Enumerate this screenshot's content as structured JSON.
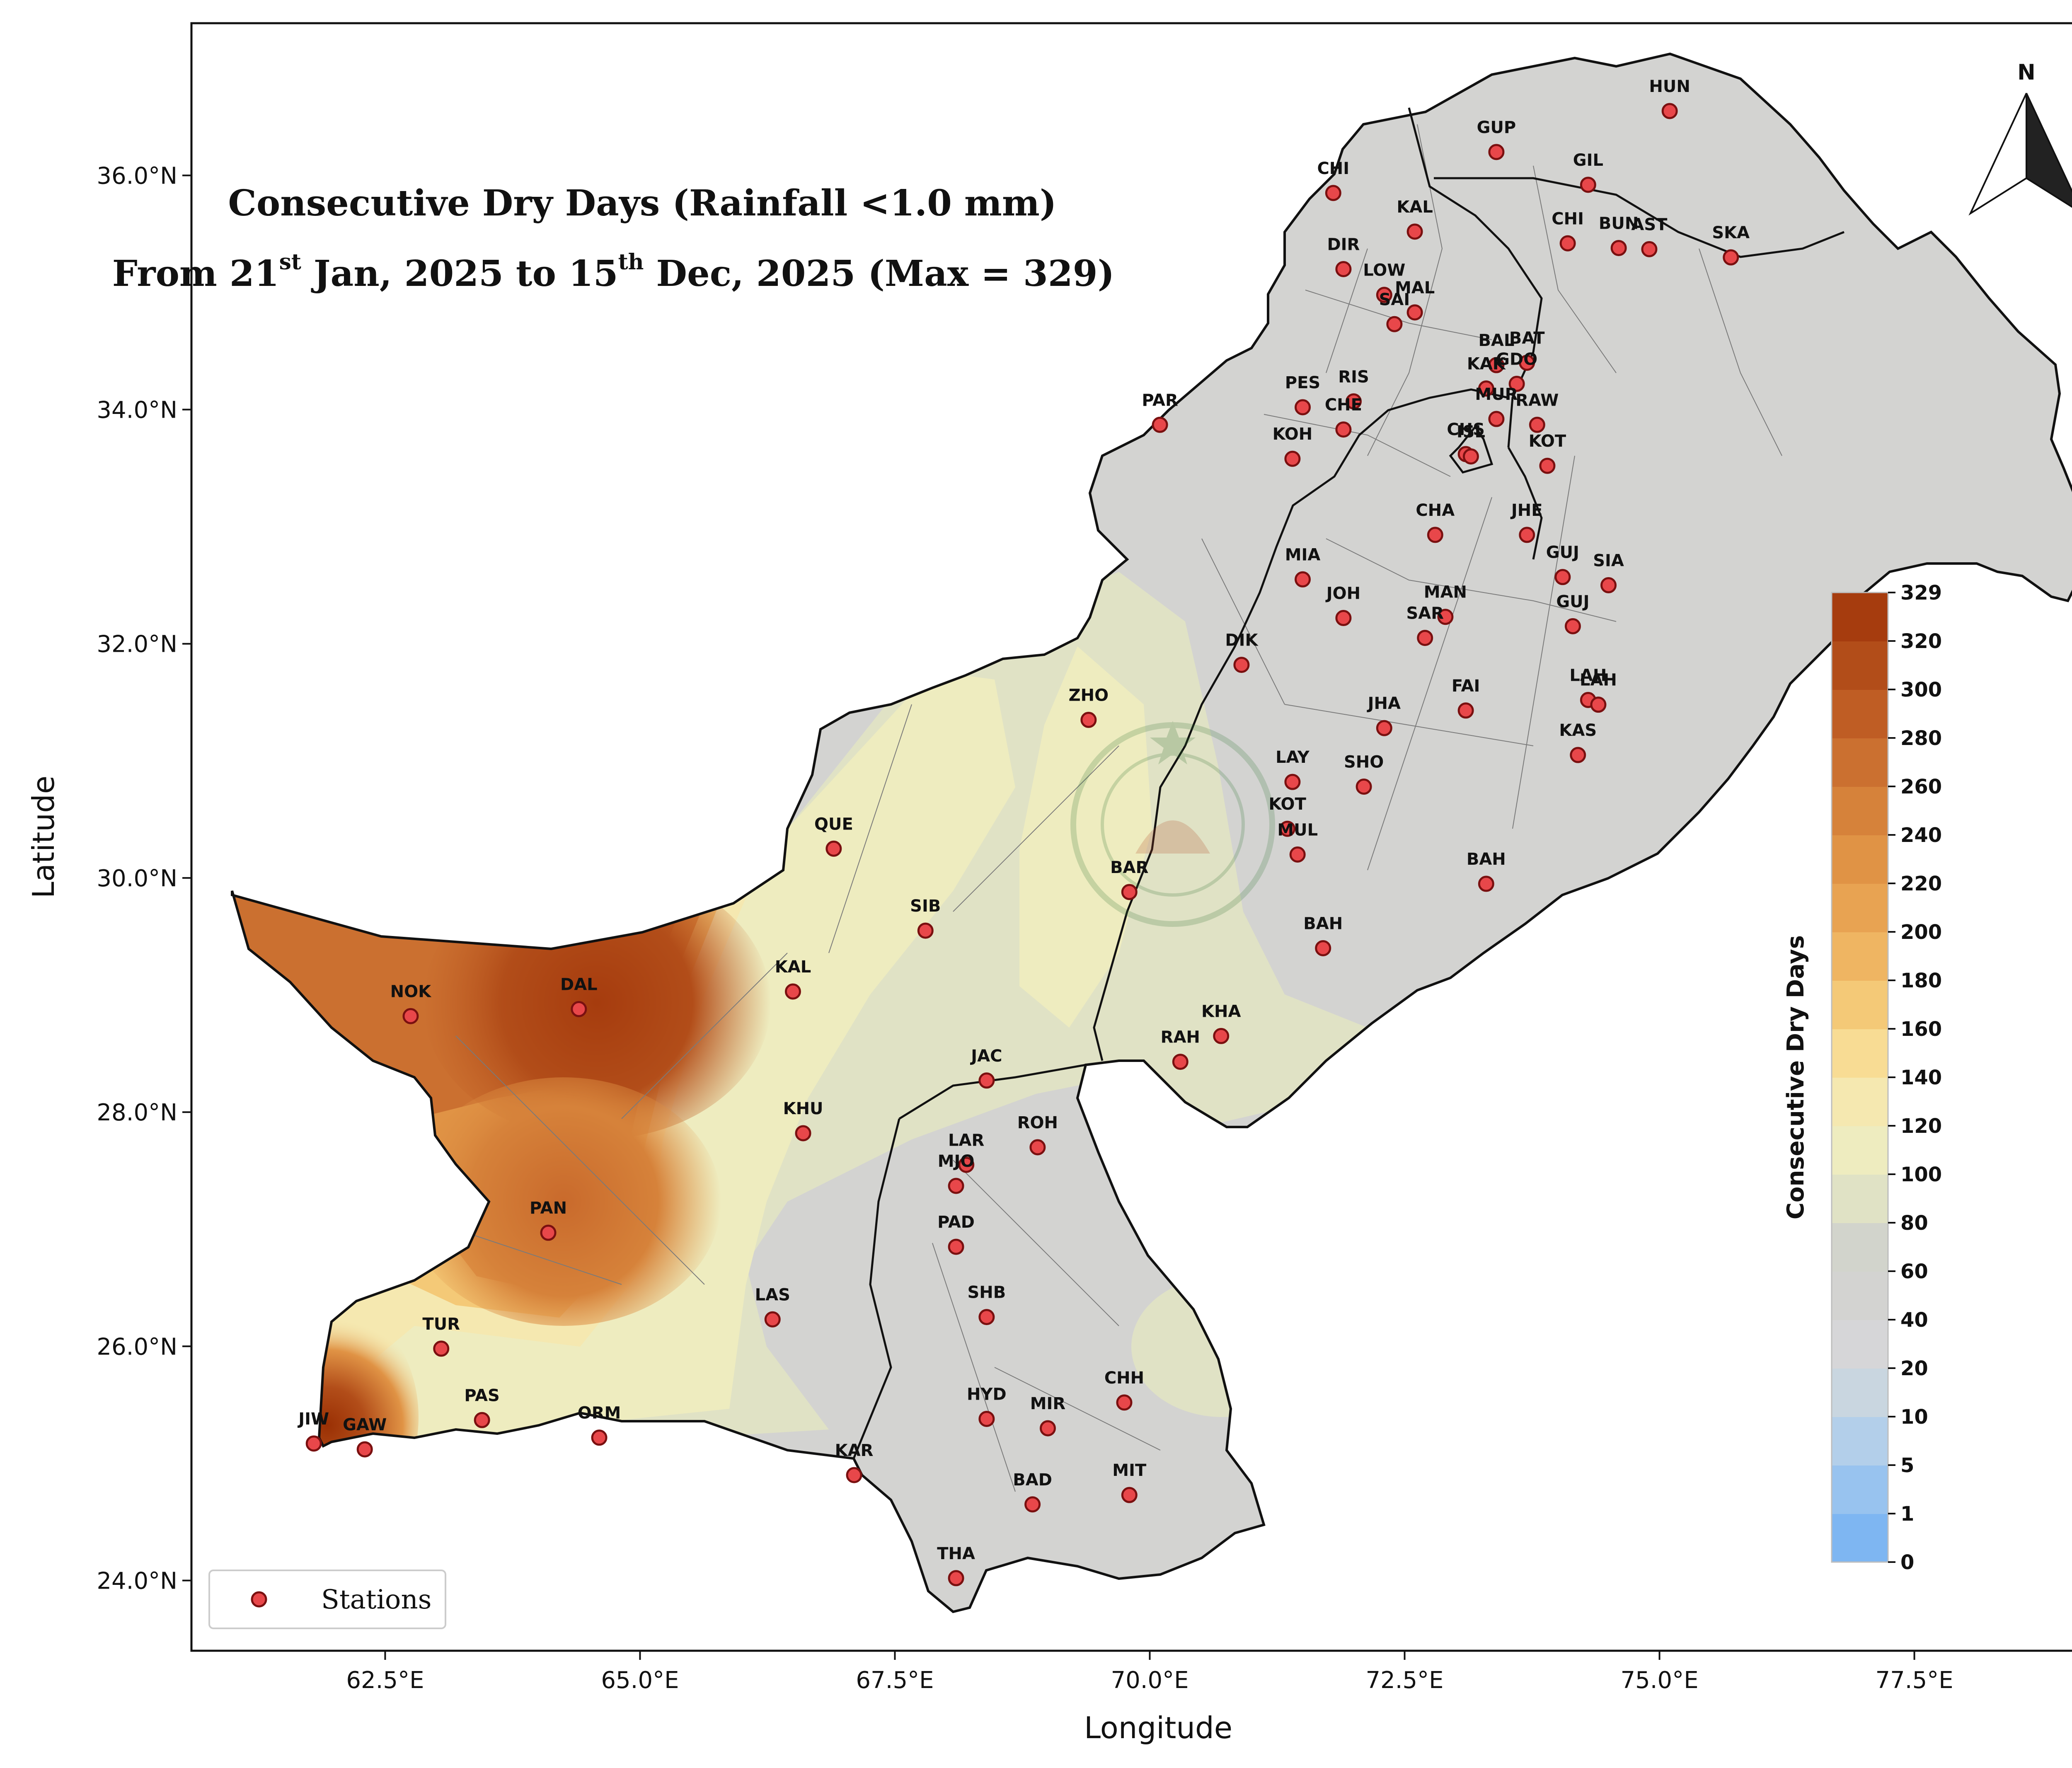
{
  "title": {
    "line1": "Consecutive Dry Days (Rainfall <1.0 mm)",
    "line2_from": "From 21",
    "line2_sup1": "st",
    "line2_mid": " Jan, 2025 to 15",
    "line2_sup2": "th",
    "line2_end": " Dec, 2025 (Max = 329)"
  },
  "axes": {
    "xlabel": "Longitude",
    "ylabel": "Latitude",
    "lon_range": [
      60.6,
      79.4
    ],
    "lat_range": [
      23.4,
      37.3
    ],
    "x_ticks": [
      {
        "value": 62.5,
        "label": "62.5°E"
      },
      {
        "value": 65.0,
        "label": "65.0°E"
      },
      {
        "value": 67.5,
        "label": "67.5°E"
      },
      {
        "value": 70.0,
        "label": "70.0°E"
      },
      {
        "value": 72.5,
        "label": "72.5°E"
      },
      {
        "value": 75.0,
        "label": "75.0°E"
      },
      {
        "value": 77.5,
        "label": "77.5°E"
      }
    ],
    "y_ticks": [
      {
        "value": 24,
        "label": "24.0°N"
      },
      {
        "value": 26,
        "label": "26.0°N"
      },
      {
        "value": 28,
        "label": "28.0°N"
      },
      {
        "value": 30,
        "label": "30.0°N"
      },
      {
        "value": 32,
        "label": "32.0°N"
      },
      {
        "value": 34,
        "label": "34.0°N"
      },
      {
        "value": 36,
        "label": "36.0°N"
      }
    ]
  },
  "colorbar": {
    "title": "Consecutive Dry Days",
    "levels": [
      {
        "label": "0",
        "color": "#7eb6f2"
      },
      {
        "label": "1",
        "color": "#98c3ef"
      },
      {
        "label": "5",
        "color": "#b3cfea"
      },
      {
        "label": "10",
        "color": "#c9d6e0"
      },
      {
        "label": "20",
        "color": "#d6d6d8"
      },
      {
        "label": "40",
        "color": "#d3d3d1"
      },
      {
        "label": "60",
        "color": "#d2d4cc"
      },
      {
        "label": "80",
        "color": "#e0e2c5"
      },
      {
        "label": "100",
        "color": "#eeecbf"
      },
      {
        "label": "120",
        "color": "#f5e8b0"
      },
      {
        "label": "140",
        "color": "#f8dc94"
      },
      {
        "label": "160",
        "color": "#f4c977"
      },
      {
        "label": "180",
        "color": "#efb562"
      },
      {
        "label": "200",
        "color": "#e8a352"
      },
      {
        "label": "220",
        "color": "#e09345"
      },
      {
        "label": "240",
        "color": "#d6823a"
      },
      {
        "label": "260",
        "color": "#cb7030"
      },
      {
        "label": "280",
        "color": "#bf5d24"
      },
      {
        "label": "300",
        "color": "#b24d19"
      },
      {
        "label": "320",
        "color": "#a63c0e"
      },
      {
        "label": "329",
        "color": "#9a3004"
      }
    ]
  },
  "legend": {
    "label": "Stations",
    "position": "lower-left"
  },
  "north_arrow": {
    "label": "N",
    "icon": "north-arrow-icon"
  },
  "station_style": {
    "fill": "#e8474a",
    "stroke": "#7a1010"
  },
  "stations": [
    {
      "code": "HUN",
      "lon": 75.1,
      "lat": 36.55
    },
    {
      "code": "GUP",
      "lon": 73.4,
      "lat": 36.2
    },
    {
      "code": "GIL",
      "lon": 74.3,
      "lat": 35.92
    },
    {
      "code": "CHI",
      "lon": 71.8,
      "lat": 35.85
    },
    {
      "code": "KAL",
      "lon": 72.6,
      "lat": 35.52
    },
    {
      "code": "CHI",
      "lon": 74.1,
      "lat": 35.42
    },
    {
      "code": "BUN",
      "lon": 74.6,
      "lat": 35.38
    },
    {
      "code": "AST",
      "lon": 74.9,
      "lat": 35.37
    },
    {
      "code": "SKA",
      "lon": 75.7,
      "lat": 35.3
    },
    {
      "code": "DIR",
      "lon": 71.9,
      "lat": 35.2
    },
    {
      "code": "LOW",
      "lon": 72.3,
      "lat": 34.98
    },
    {
      "code": "MAL",
      "lon": 72.6,
      "lat": 34.83
    },
    {
      "code": "SAI",
      "lon": 72.4,
      "lat": 34.73
    },
    {
      "code": "BAL",
      "lon": 73.4,
      "lat": 34.38
    },
    {
      "code": "BAT",
      "lon": 73.7,
      "lat": 34.4
    },
    {
      "code": "KAK",
      "lon": 73.3,
      "lat": 34.18
    },
    {
      "code": "GDO",
      "lon": 73.6,
      "lat": 34.22
    },
    {
      "code": "PES",
      "lon": 71.5,
      "lat": 34.02
    },
    {
      "code": "RIS",
      "lon": 72.0,
      "lat": 34.07
    },
    {
      "code": "MUR",
      "lon": 73.4,
      "lat": 33.92
    },
    {
      "code": "RAW",
      "lon": 73.8,
      "lat": 33.87
    },
    {
      "code": "PAR",
      "lon": 70.1,
      "lat": 33.87
    },
    {
      "code": "CHE",
      "lon": 71.9,
      "lat": 33.83
    },
    {
      "code": "CHS",
      "lon": 73.1,
      "lat": 33.62
    },
    {
      "code": "ISL",
      "lon": 73.15,
      "lat": 33.6
    },
    {
      "code": "KOH",
      "lon": 71.4,
      "lat": 33.58
    },
    {
      "code": "KOT",
      "lon": 73.9,
      "lat": 33.52
    },
    {
      "code": "CHA",
      "lon": 72.8,
      "lat": 32.93
    },
    {
      "code": "JHE",
      "lon": 73.7,
      "lat": 32.93
    },
    {
      "code": "MIA",
      "lon": 71.5,
      "lat": 32.55
    },
    {
      "code": "GUJ",
      "lon": 74.05,
      "lat": 32.57
    },
    {
      "code": "SIA",
      "lon": 74.5,
      "lat": 32.5
    },
    {
      "code": "JOH",
      "lon": 71.9,
      "lat": 32.22
    },
    {
      "code": "MAN",
      "lon": 72.9,
      "lat": 32.23
    },
    {
      "code": "GUJ",
      "lon": 74.15,
      "lat": 32.15
    },
    {
      "code": "SAR",
      "lon": 72.7,
      "lat": 32.05
    },
    {
      "code": "DIK",
      "lon": 70.9,
      "lat": 31.82
    },
    {
      "code": "LAH",
      "lon": 74.3,
      "lat": 31.52
    },
    {
      "code": "LAH",
      "lon": 74.4,
      "lat": 31.48
    },
    {
      "code": "FAI",
      "lon": 73.1,
      "lat": 31.43
    },
    {
      "code": "ZHO",
      "lon": 69.4,
      "lat": 31.35
    },
    {
      "code": "JHA",
      "lon": 72.3,
      "lat": 31.28
    },
    {
      "code": "KAS",
      "lon": 74.2,
      "lat": 31.05
    },
    {
      "code": "LAY",
      "lon": 71.4,
      "lat": 30.82
    },
    {
      "code": "SHO",
      "lon": 72.1,
      "lat": 30.78
    },
    {
      "code": "KOT",
      "lon": 71.35,
      "lat": 30.42
    },
    {
      "code": "QUE",
      "lon": 66.9,
      "lat": 30.25
    },
    {
      "code": "MUL",
      "lon": 71.45,
      "lat": 30.2
    },
    {
      "code": "BAH",
      "lon": 73.3,
      "lat": 29.95
    },
    {
      "code": "BAR",
      "lon": 69.8,
      "lat": 29.88
    },
    {
      "code": "SIB",
      "lon": 67.8,
      "lat": 29.55
    },
    {
      "code": "BAH",
      "lon": 71.7,
      "lat": 29.4
    },
    {
      "code": "KAL",
      "lon": 66.5,
      "lat": 29.03
    },
    {
      "code": "NOK",
      "lon": 62.75,
      "lat": 28.82
    },
    {
      "code": "DAL",
      "lon": 64.4,
      "lat": 28.88
    },
    {
      "code": "KHA",
      "lon": 70.7,
      "lat": 28.65
    },
    {
      "code": "RAH",
      "lon": 70.3,
      "lat": 28.43
    },
    {
      "code": "JAC",
      "lon": 68.4,
      "lat": 28.27
    },
    {
      "code": "KHU",
      "lon": 66.6,
      "lat": 27.82
    },
    {
      "code": "ROH",
      "lon": 68.9,
      "lat": 27.7
    },
    {
      "code": "LAR",
      "lon": 68.2,
      "lat": 27.55
    },
    {
      "code": "MJO",
      "lon": 68.1,
      "lat": 27.37
    },
    {
      "code": "PAN",
      "lon": 64.1,
      "lat": 26.97
    },
    {
      "code": "PAD",
      "lon": 68.1,
      "lat": 26.85
    },
    {
      "code": "SHB",
      "lon": 68.4,
      "lat": 26.25
    },
    {
      "code": "LAS",
      "lon": 66.3,
      "lat": 26.23
    },
    {
      "code": "TUR",
      "lon": 63.05,
      "lat": 25.98
    },
    {
      "code": "CHH",
      "lon": 69.75,
      "lat": 25.52
    },
    {
      "code": "PAS",
      "lon": 63.45,
      "lat": 25.37
    },
    {
      "code": "HYD",
      "lon": 68.4,
      "lat": 25.38
    },
    {
      "code": "MIR",
      "lon": 69.0,
      "lat": 25.3
    },
    {
      "code": "ORM",
      "lon": 64.6,
      "lat": 25.22
    },
    {
      "code": "JIW",
      "lon": 61.8,
      "lat": 25.17
    },
    {
      "code": "GAW",
      "lon": 62.3,
      "lat": 25.12
    },
    {
      "code": "KAR",
      "lon": 67.1,
      "lat": 24.9
    },
    {
      "code": "MIT",
      "lon": 69.8,
      "lat": 24.73
    },
    {
      "code": "BAD",
      "lon": 68.85,
      "lat": 24.65
    },
    {
      "code": "THA",
      "lon": 68.1,
      "lat": 24.02
    }
  ]
}
